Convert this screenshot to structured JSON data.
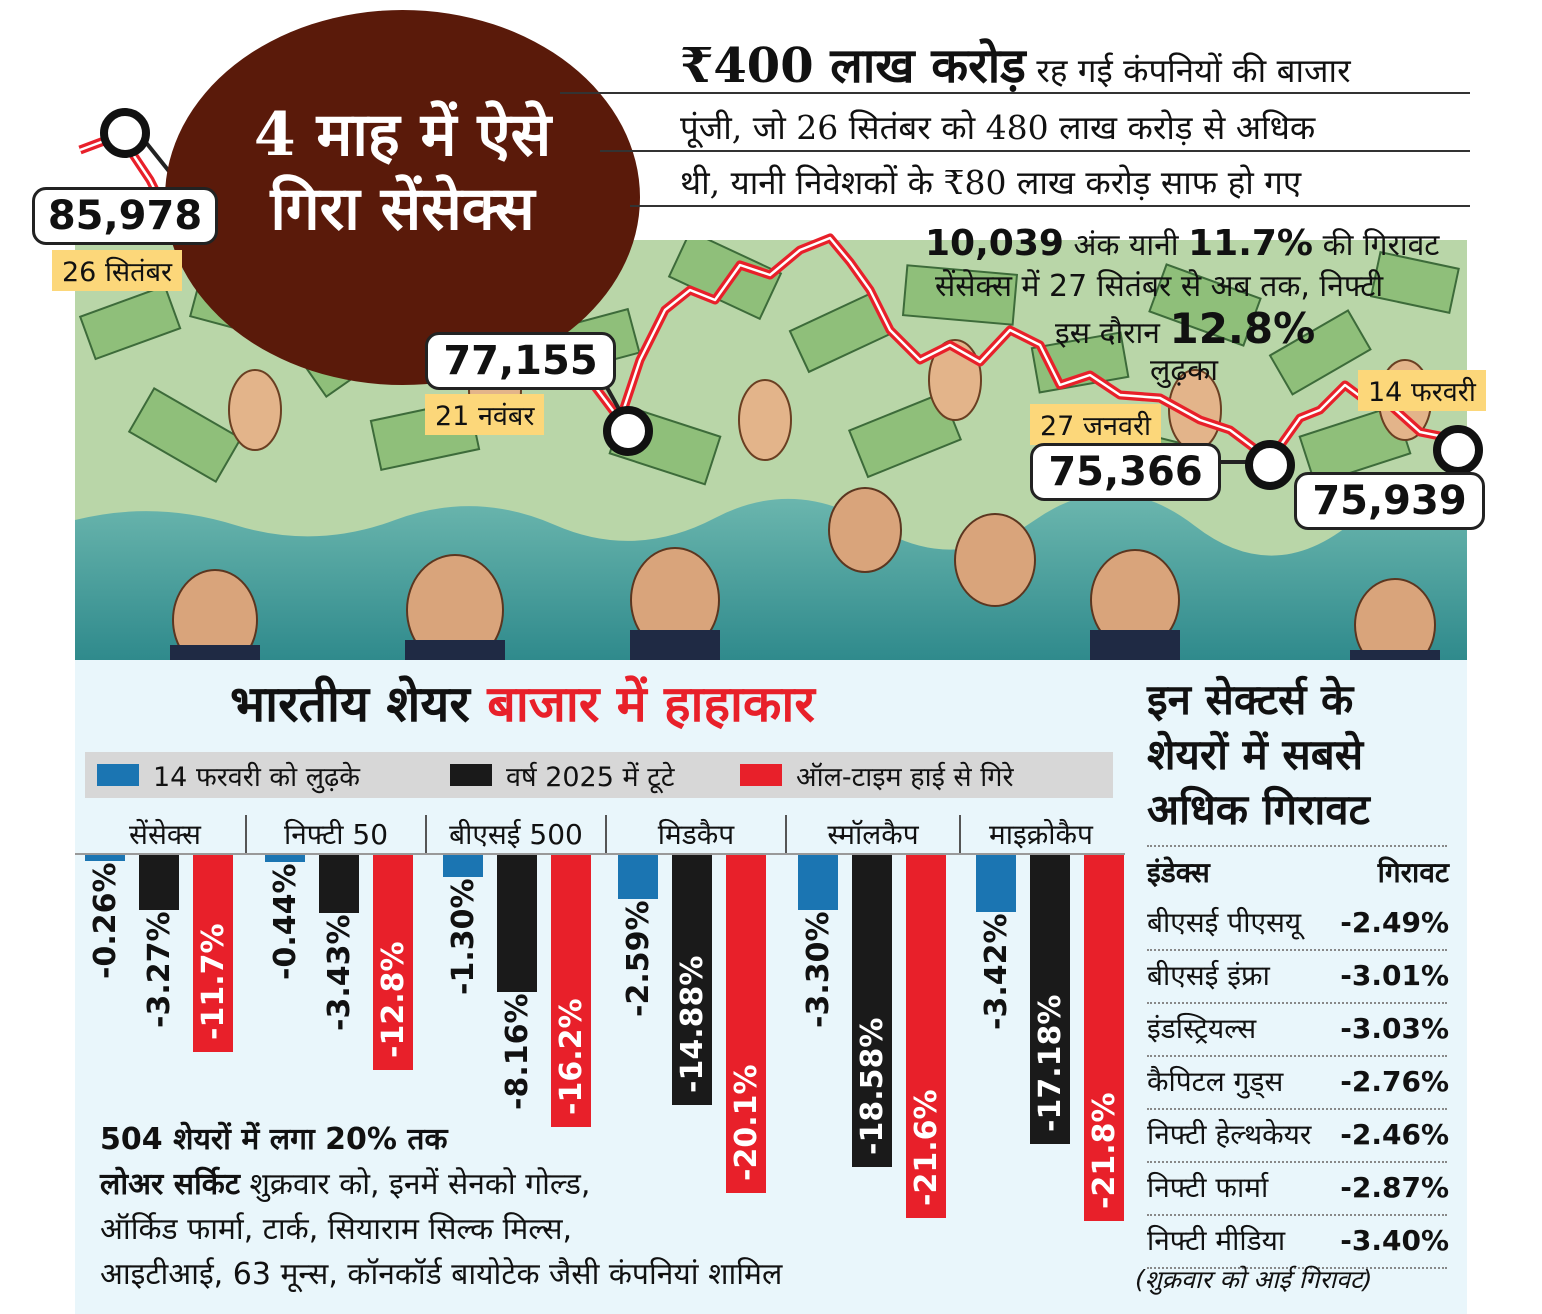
{
  "headline": {
    "circle_line1": "4 माह में ऐसे",
    "circle_line2": "गिरा सेंसेक्स",
    "market_cap_big": "₹400 लाख करोड़",
    "market_cap_line1_rest": "रह गई कंपनियों की बाजार",
    "market_cap_line2": "पूंजी, जो 26 सितंबर को 480 लाख करोड़ से अधिक",
    "market_cap_line3": "थी, यानी निवेशकों के ₹80 लाख करोड़ साफ  हो गए",
    "drop_points": "10,039",
    "drop_line1_mid": "अंक यानी",
    "drop_pct": "11.7%",
    "drop_line1_end": "की गिरावट",
    "drop_line2": "सेंसेक्स में 27 सितंबर से अब तक, निफ्टी",
    "drop_line3_start": "इस दौरान",
    "nifty_pct": "12.8%",
    "drop_line4": "लुढ़का"
  },
  "sensex_points": [
    {
      "value": "85,978",
      "date": "26 सितंबर"
    },
    {
      "value": "77,155",
      "date": "21 नवंबर"
    },
    {
      "value": "75,366",
      "date": "27 जनवरी"
    },
    {
      "value": "75,939",
      "date": "14 फरवरी"
    }
  ],
  "chart_data": {
    "type": "bar",
    "title": "भारतीय शेयर बाजार में हाहाकार",
    "title_plain": "भारतीय शेयर",
    "title_red": "बाजार में हाहाकार",
    "categories": [
      "सेंसेक्स",
      "निफ्टी 50",
      "बीएसई 500",
      "मिडकैप",
      "स्मॉलकैप",
      "माइक्रोकैप"
    ],
    "series": [
      {
        "name": "14 फरवरी को लुढ़के",
        "color": "#1b75b2",
        "values": [
          -0.26,
          -0.44,
          -1.3,
          -2.59,
          -3.3,
          -3.42
        ],
        "labels": [
          "-0.26%",
          "-0.44%",
          "-1.30%",
          "-2.59%",
          "-3.30%",
          "-3.42%"
        ]
      },
      {
        "name": "वर्ष 2025 में टूटे",
        "color": "#1a1a1a",
        "values": [
          -3.27,
          -3.43,
          -8.16,
          -14.88,
          -18.58,
          -17.18
        ],
        "labels": [
          "-3.27%",
          "-3.43%",
          "-8.16%",
          "-14.88%",
          "-18.58%",
          "-17.18%"
        ]
      },
      {
        "name": "ऑल-टाइम हाई से गिरे",
        "color": "#e8202a",
        "values": [
          -11.7,
          -12.8,
          -16.2,
          -20.1,
          -21.6,
          -21.8
        ],
        "labels": [
          "-11.7%",
          "-12.8%",
          "-16.2%",
          "-20.1%",
          "-21.6%",
          "-21.8%"
        ]
      }
    ],
    "legend": "top"
  },
  "lower_circuit": {
    "line1": "504 शेयरों में लगा 20% तक",
    "line2_bold": "लोअर सर्किट",
    "line2_rest": "शुक्रवार को, इनमें सेनको गोल्ड,",
    "line3": "ऑर्किड फार्मा, टार्क, सियाराम सिल्क मिल्स,",
    "line4": "आइटीआई, 63 मून्स, कॉनकॉर्ड बायोटेक जैसी कंपनियां शामिल"
  },
  "sectors": {
    "title_line1": "इन सेक्टर्स के",
    "title_line2": "शेयरों में सबसे",
    "title_line3": "अधिक गिरावट",
    "col_index": "इंडेक्स",
    "col_fall": "गिरावट",
    "rows": [
      {
        "name": "बीएसई पीएसयू",
        "value": "-2.49%"
      },
      {
        "name": "बीएसई इंफ्रा",
        "value": "-3.01%"
      },
      {
        "name": "इंडस्ट्रियल्स",
        "value": "-3.03%"
      },
      {
        "name": "कैपिटल गुड्स",
        "value": "-2.76%"
      },
      {
        "name": "निफ्टी हेल्थकेयर",
        "value": "-2.46%"
      },
      {
        "name": "निफ्टी फार्मा",
        "value": "-2.87%"
      },
      {
        "name": "निफ्टी मीडिया",
        "value": "-3.40%"
      }
    ],
    "footnote": "(शुक्रवार को आई गिरावट)"
  },
  "colors": {
    "blue": "#1b75b2",
    "black": "#1a1a1a",
    "red": "#e8202a",
    "brown": "#5a1a0a",
    "yellow": "#fcd77a",
    "water": "#4fa3a0",
    "panel": "#e9f6fb"
  }
}
